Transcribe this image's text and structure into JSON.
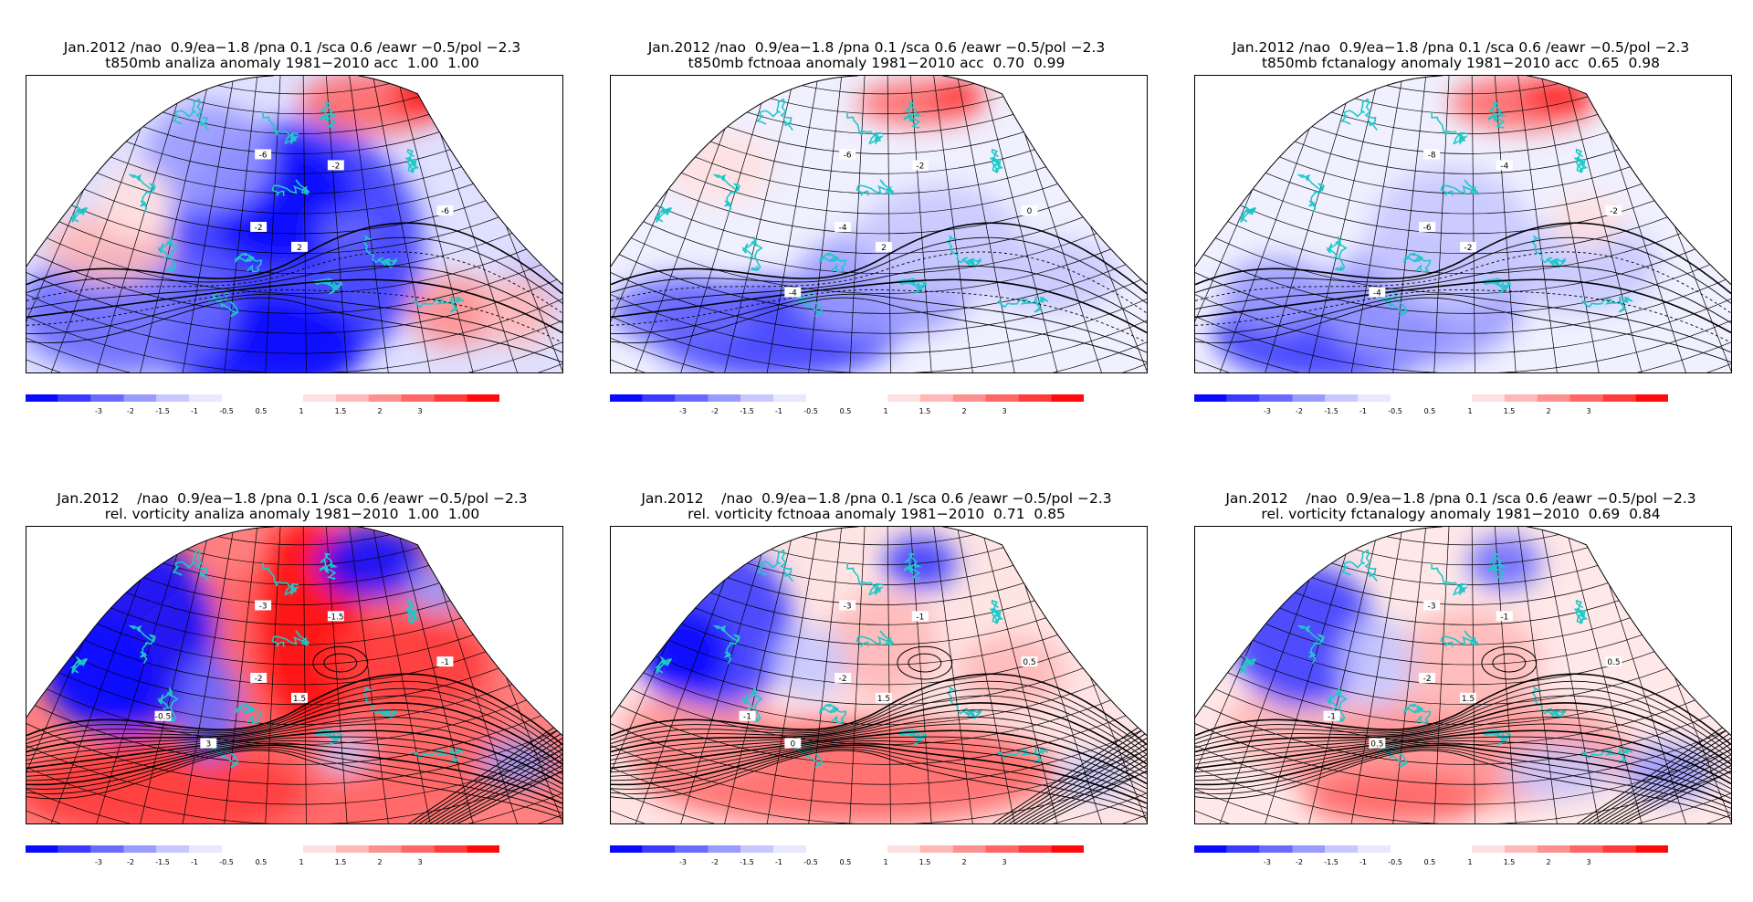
{
  "panels": [
    {
      "line1": "Jan.2012 /nao  0.9/ea−1.8 /pna 0.1 /sca 0.6 /eawr −0.5/pol −2.3",
      "line2": "t850mb analiza anomaly 1981−2010 acc  1.00  1.00",
      "variable": "t850mb",
      "source": "analiza",
      "pattern": "temp_analiza",
      "contour_labels": [
        "-6",
        "-2",
        "-2",
        "-6",
        "2"
      ]
    },
    {
      "line1": "Jan.2012 /nao  0.9/ea−1.8 /pna 0.1 /sca 0.6 /eawr −0.5/pol −2.3",
      "line2": "t850mb fctnoaa anomaly 1981−2010 acc  0.70  0.99",
      "variable": "t850mb",
      "source": "fctnoaa",
      "pattern": "temp_fcst",
      "contour_labels": [
        "-6",
        "-4",
        "-2",
        "0",
        "2",
        "-4"
      ]
    },
    {
      "line1": "Jan.2012 /nao  0.9/ea−1.8 /pna 0.1 /sca 0.6 /eawr −0.5/pol −2.3",
      "line2": "t850mb fctanalogy anomaly 1981−2010 acc  0.65  0.98",
      "variable": "t850mb",
      "source": "fctanalogy",
      "pattern": "temp_fcst2",
      "contour_labels": [
        "-8",
        "-6",
        "-4",
        "-2",
        "-2",
        "-4"
      ]
    },
    {
      "line1": "Jan.2012    /nao  0.9/ea−1.8 /pna 0.1 /sca 0.6 /eawr −0.5/pol −2.3",
      "line2": "rel. vorticity analiza anomaly 1981−2010  1.00  1.00",
      "variable": "rel. vorticity",
      "source": "analiza",
      "pattern": "vort_analiza",
      "contour_labels": [
        "-3",
        "-2",
        "-1.5",
        "-1",
        "1.5",
        "3",
        "-0.5"
      ]
    },
    {
      "line1": "Jan.2012    /nao  0.9/ea−1.8 /pna 0.1 /sca 0.6 /eawr −0.5/pol −2.3",
      "line2": "rel. vorticity fctnoaa anomaly 1981−2010  0.71  0.85",
      "variable": "rel. vorticity",
      "source": "fctnoaa",
      "pattern": "vort_fcst",
      "contour_labels": [
        "-3",
        "-2",
        "-1",
        "0.5",
        "1.5",
        "0",
        "-1"
      ]
    },
    {
      "line1": "Jan.2012    /nao  0.9/ea−1.8 /pna 0.1 /sca 0.6 /eawr −0.5/pol −2.3",
      "line2": "rel. vorticity fctanalogy anomaly 1981−2010  0.69  0.84",
      "variable": "rel. vorticity",
      "source": "fctanalogy",
      "pattern": "vort_fcst2",
      "contour_labels": [
        "-3",
        "-2",
        "-1",
        "0.5",
        "1.5",
        "0.5",
        "-1"
      ]
    }
  ],
  "colorbar": {
    "negative_colors": [
      "#0a0aff",
      "#3a3aff",
      "#6a6aff",
      "#9a9aff",
      "#c8c8ff",
      "#e8e8ff"
    ],
    "positive_colors": [
      "#ffe0e0",
      "#ffb8b8",
      "#ff9090",
      "#ff6666",
      "#ff3c3c",
      "#ff0a0a"
    ],
    "neg_labels": [
      "-3",
      "-2",
      "-1.5",
      "-1",
      "-0.5"
    ],
    "pos_labels": [
      "0.5",
      "1",
      "1.5",
      "2",
      "3"
    ]
  },
  "colors": {
    "coastline": "#1ec8c8",
    "grid": "#000000",
    "contour": "#000000"
  }
}
